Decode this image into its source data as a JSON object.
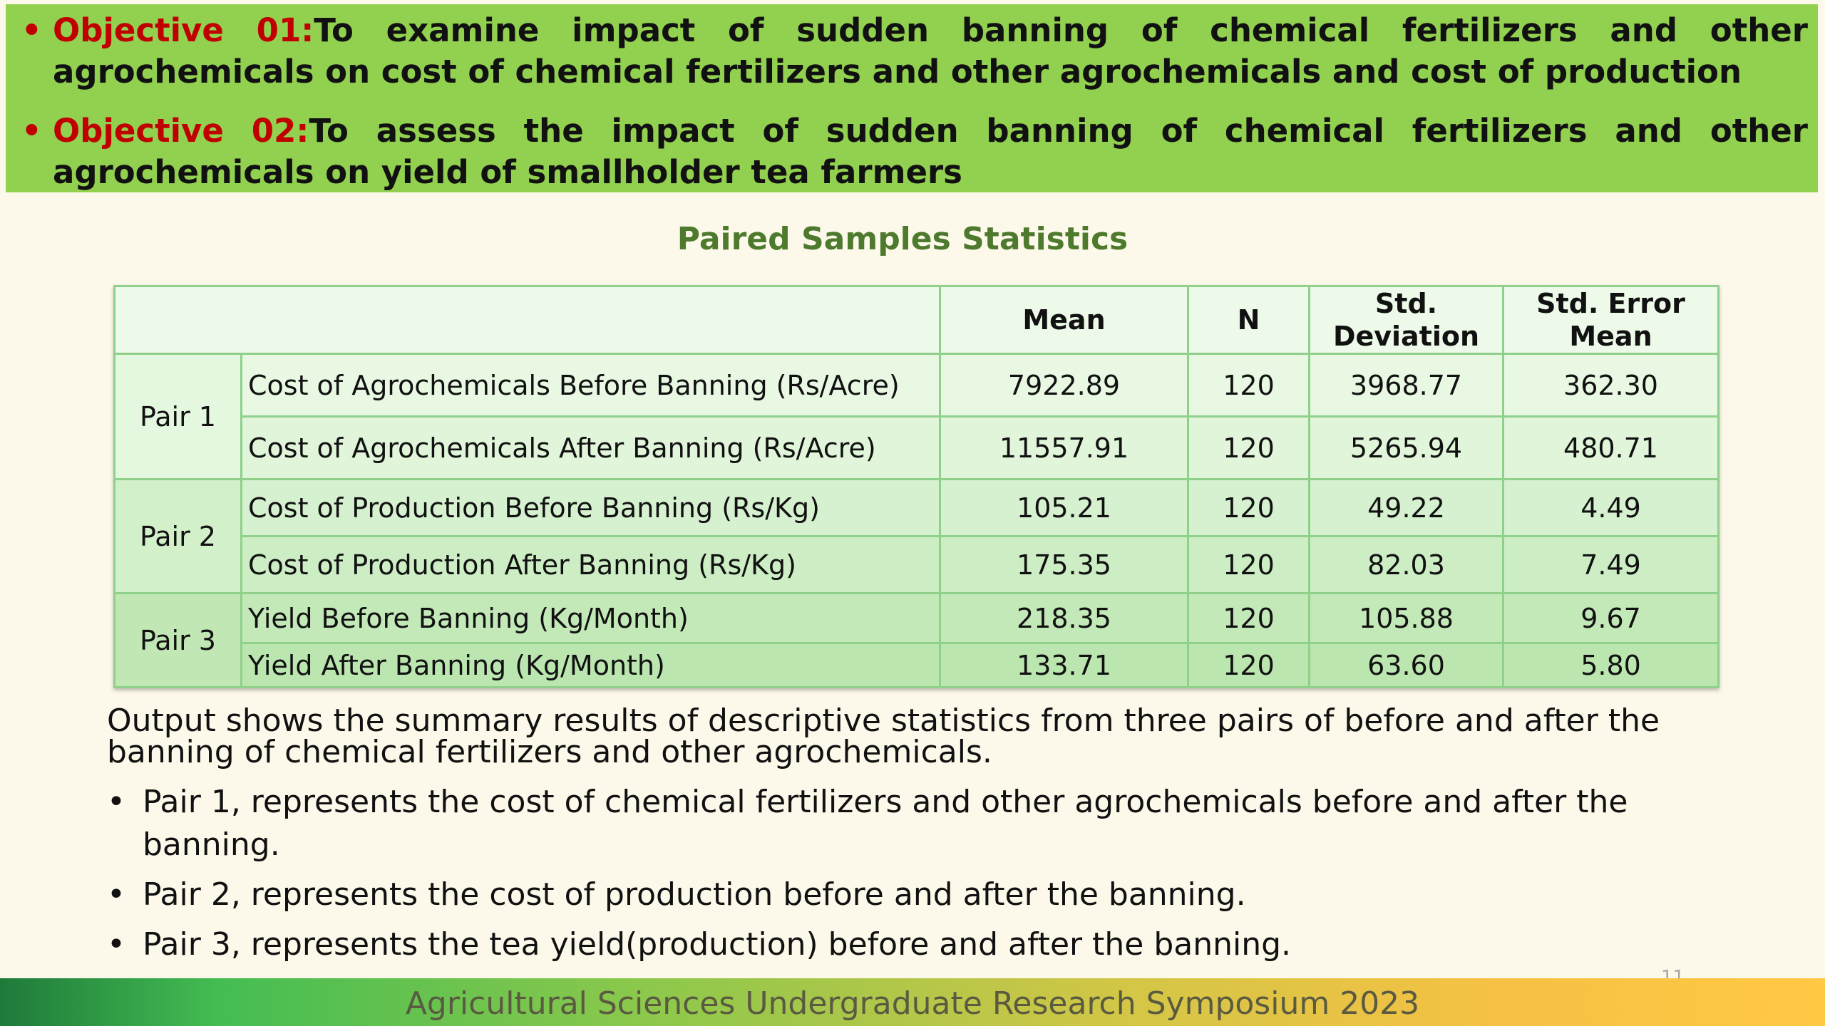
{
  "objectives": [
    {
      "bullet": "•",
      "label": "Objective 01:",
      "text": "To examine impact of sudden banning of chemical fertilizers and other agrochemicals on cost of chemical fertilizers and other agrochemicals and cost of production"
    },
    {
      "bullet": "•",
      "label": "Objective 02:",
      "text": "To assess the impact of sudden banning of chemical fertilizers and other agrochemicals on yield of smallholder tea farmers"
    }
  ],
  "table": {
    "title": "Paired Samples Statistics",
    "headers": [
      "",
      "Mean",
      "N",
      "Std. Deviation",
      "Std. Error Mean"
    ],
    "rows": [
      {
        "pair": "Pair 1",
        "variable": "Cost of Agrochemicals Before Banning (Rs/Acre)",
        "mean": "7922.89",
        "n": "120",
        "sd": "3968.77",
        "sem": "362.30"
      },
      {
        "pair": "",
        "variable": "Cost  of Agrochemicals After Banning (Rs/Acre)",
        "mean": "11557.91",
        "n": "120",
        "sd": "5265.94",
        "sem": "480.71"
      },
      {
        "pair": "Pair 2",
        "variable": "Cost of Production Before Banning (Rs/Kg)",
        "mean": "105.21",
        "n": "120",
        "sd": "49.22",
        "sem": "4.49"
      },
      {
        "pair": "",
        "variable": "Cost  of Production After Banning (Rs/Kg)",
        "mean": "175.35",
        "n": "120",
        "sd": "82.03",
        "sem": "7.49"
      },
      {
        "pair": "Pair 3",
        "variable": "Yield Before Banning (Kg/Month)",
        "mean": "218.35",
        "n": "120",
        "sd": "105.88",
        "sem": "9.67"
      },
      {
        "pair": "",
        "variable": "Yield After Banning (Kg/Month)",
        "mean": "133.71",
        "n": "120",
        "sd": "63.60",
        "sem": "5.80"
      }
    ]
  },
  "summary": "Output shows the summary results of descriptive statistics from three pairs of before and after the banning of chemical fertilizers and other agrochemicals.",
  "points": [
    "Pair 1, represents the cost of chemical fertilizers and other agrochemicals before and after the banning.",
    "Pair 2, represents the cost of production before and after the banning.",
    "Pair 3, represents the tea yield(production) before and after the banning."
  ],
  "footer": {
    "text": "Agricultural Sciences Undergraduate Research Symposium 2023",
    "slide_number": "11"
  },
  "colors": {
    "objective_band": "#92d050",
    "objective_label": "#c00000",
    "table_title": "#4e7a2e",
    "table_border": "#8fd08a",
    "background": "#fdf9ea"
  }
}
